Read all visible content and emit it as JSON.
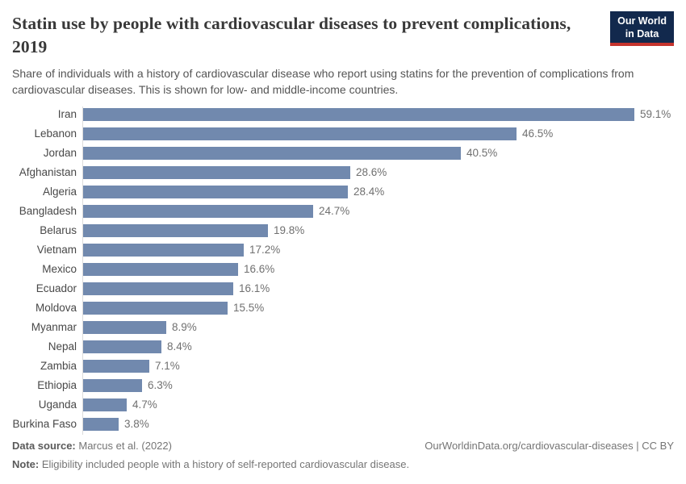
{
  "header": {
    "title": "Statin use by people with cardiovascular diseases to prevent complications, 2019",
    "subtitle": "Share of individuals with a history of cardiovascular disease who report using statins for the prevention of complications from cardiovascular diseases. This is shown for low- and middle-income countries.",
    "logo": {
      "line1": "Our World",
      "line2": "in Data"
    }
  },
  "chart_data": {
    "type": "bar",
    "orientation": "horizontal",
    "title": "Statin use by people with cardiovascular diseases to prevent complications, 2019",
    "categories": [
      "Iran",
      "Lebanon",
      "Jordan",
      "Afghanistan",
      "Algeria",
      "Bangladesh",
      "Belarus",
      "Vietnam",
      "Mexico",
      "Ecuador",
      "Moldova",
      "Myanmar",
      "Nepal",
      "Zambia",
      "Ethiopia",
      "Uganda",
      "Burkina Faso"
    ],
    "values": [
      59.1,
      46.5,
      40.5,
      28.6,
      28.4,
      24.7,
      19.8,
      17.2,
      16.6,
      16.1,
      15.5,
      8.9,
      8.4,
      7.1,
      6.3,
      4.7,
      3.8
    ],
    "value_suffix": "%",
    "xlabel": "",
    "ylabel": "",
    "xlim": [
      0,
      63
    ],
    "grid": false,
    "legend": false,
    "data_labels": true
  },
  "footer": {
    "data_source_label": "Data source:",
    "data_source_value": " Marcus et al. (2022)",
    "note_label": "Note:",
    "note_value": " Eligibility included people with a history of self-reported cardiovascular disease.",
    "attribution": "OurWorldinData.org/cardiovascular-diseases | CC BY"
  },
  "colors": {
    "bar_color": "#7189ae",
    "title_color": "#383838",
    "subtitle_color": "#555555",
    "logo_navy": "#12294d",
    "logo_red": "#c5342d",
    "axis_color": "#dcdcdc"
  }
}
